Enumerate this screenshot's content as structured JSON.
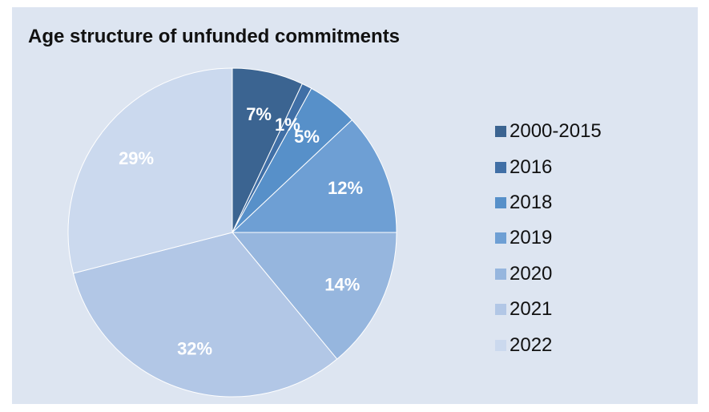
{
  "chart_data": {
    "type": "pie",
    "title": "Age structure of unfunded commitments",
    "categories": [
      "2000-2015",
      "2016",
      "2018",
      "2019",
      "2020",
      "2021",
      "2022"
    ],
    "values": [
      7,
      1,
      5,
      12,
      14,
      32,
      29
    ],
    "value_labels": [
      "7%",
      "1%",
      "5%",
      "12%",
      "14%",
      "32%",
      "29%"
    ],
    "unit": "%",
    "start_angle": "12 o'clock",
    "direction": "clockwise",
    "legend_position": "right",
    "colors": [
      "#3b6491",
      "#406fa6",
      "#5790c9",
      "#6e9fd4",
      "#96b6de",
      "#b2c7e6",
      "#cbd9ee"
    ],
    "label_color": "#ffffff",
    "background": "#dde5f1"
  }
}
